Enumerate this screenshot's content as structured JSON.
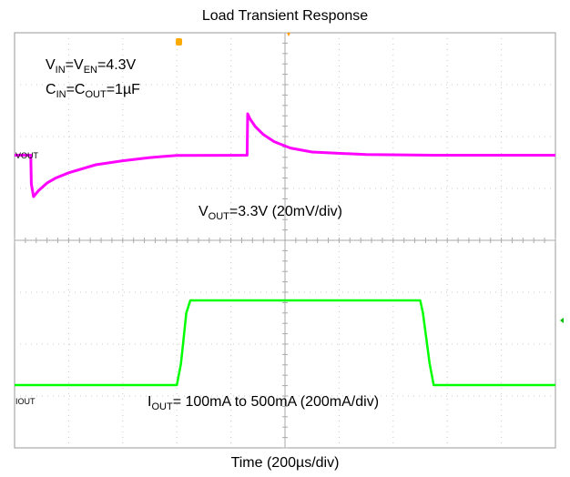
{
  "chart_data": {
    "type": "line",
    "title": "Load Transient Response",
    "xlabel": "Time (200µs/div)",
    "x_divisions": 10,
    "y_divisions": 8,
    "grid": true,
    "annotations": {
      "vin_line": {
        "p1": "V",
        "s1": "IN",
        "p2": "=V",
        "s2": "EN",
        "p3": "=4.3V"
      },
      "cin_line": {
        "p1": "C",
        "s1": "IN",
        "p2": "=C",
        "s2": "OUT",
        "p3": "=1µF"
      },
      "vout_line": {
        "p1": "V",
        "s1": "OUT",
        "p2": "=3.3V (20mV/div)"
      },
      "iout_line": {
        "p1": "I",
        "s1": "OUT",
        "p2": "= 100mA to 500mA (200mA/div)"
      }
    },
    "series": [
      {
        "name": "VOUT",
        "color": "#ff00ff",
        "x": [
          0,
          0.6,
          0.62,
          0.7,
          0.9,
          1.2,
          1.5,
          2.0,
          3.0,
          4.0,
          5.0,
          5.5,
          6.0,
          8.6,
          8.62,
          8.7,
          8.9,
          9.2,
          9.6,
          10.2,
          11.0,
          13.0,
          15.5,
          16.5,
          20.0
        ],
        "y": [
          0,
          0,
          -1.8,
          -2.6,
          -2.2,
          -1.75,
          -1.45,
          -1.1,
          -0.6,
          -0.35,
          -0.15,
          -0.08,
          -0.02,
          0,
          2.6,
          2.3,
          1.8,
          1.3,
          0.85,
          0.45,
          0.2,
          0.04,
          0,
          0,
          0
        ]
      },
      {
        "name": "IOUT",
        "color": "#00ff00",
        "x": [
          0,
          6.0,
          6.15,
          6.35,
          6.5,
          15.0,
          15.1,
          15.35,
          15.5,
          20.0
        ],
        "y": [
          100,
          100,
          200,
          440,
          500,
          500,
          440,
          200,
          100,
          100
        ]
      }
    ]
  },
  "labels": {
    "vout_tag": "VOUT",
    "iout_tag": "IOUT"
  },
  "colors": {
    "vout": "#ff00ff",
    "iout": "#00ff00",
    "grid": "#c8c8c8",
    "frame": "#999999",
    "trigger": "#ff9900"
  }
}
